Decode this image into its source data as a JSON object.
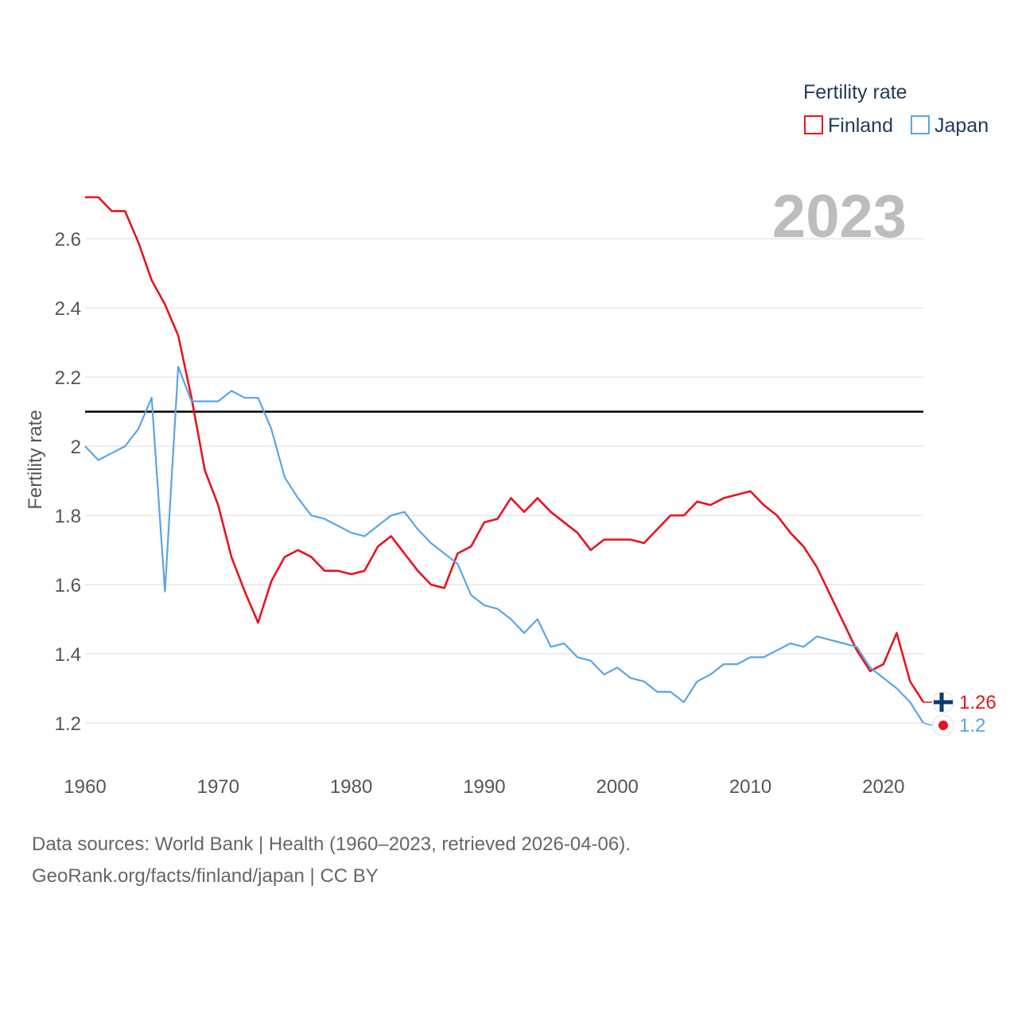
{
  "legend": {
    "title": "Fertility rate",
    "items": [
      {
        "name": "Finland",
        "color": "#e8141c"
      },
      {
        "name": "Japan",
        "color": "#5aa5e6"
      }
    ]
  },
  "year_label": "2023",
  "end_labels": {
    "finland": "1.26",
    "japan": "1.2"
  },
  "icons": {
    "finland": "finland-flag-icon",
    "japan": "japan-flag-icon"
  },
  "footer": {
    "line1": "Data sources: World Bank | Health (1960–2023, retrieved 2026-04-06).",
    "line2": "GeoRank.org/facts/finland/japan | CC BY"
  },
  "chart_data": {
    "type": "line",
    "title": "",
    "xlabel": "",
    "ylabel": "Fertility rate",
    "xlim": [
      1960,
      2023
    ],
    "ylim": [
      1.1,
      2.75
    ],
    "x_ticks": [
      1960,
      1970,
      1980,
      1990,
      2000,
      2010,
      2020
    ],
    "y_ticks": [
      1.2,
      1.4,
      1.6,
      1.8,
      2.0,
      2.2,
      2.4,
      2.6
    ],
    "y_tick_labels": [
      "1.2",
      "1.4",
      "1.6",
      "1.8",
      "2",
      "2.2",
      "2.4",
      "2.6"
    ],
    "reference_line": {
      "y": 2.1,
      "color": "#000000"
    },
    "grid": true,
    "x": [
      1960,
      1961,
      1962,
      1963,
      1964,
      1965,
      1966,
      1967,
      1968,
      1969,
      1970,
      1971,
      1972,
      1973,
      1974,
      1975,
      1976,
      1977,
      1978,
      1979,
      1980,
      1981,
      1982,
      1983,
      1984,
      1985,
      1986,
      1987,
      1988,
      1989,
      1990,
      1991,
      1992,
      1993,
      1994,
      1995,
      1996,
      1997,
      1998,
      1999,
      2000,
      2001,
      2002,
      2003,
      2004,
      2005,
      2006,
      2007,
      2008,
      2009,
      2010,
      2011,
      2012,
      2013,
      2014,
      2015,
      2016,
      2017,
      2018,
      2019,
      2020,
      2021,
      2022,
      2023
    ],
    "series": [
      {
        "name": "Finland",
        "color": "#e8141c",
        "values": [
          2.72,
          2.72,
          2.68,
          2.68,
          2.59,
          2.48,
          2.41,
          2.32,
          2.14,
          1.93,
          1.83,
          1.68,
          1.58,
          1.49,
          1.61,
          1.68,
          1.7,
          1.68,
          1.64,
          1.64,
          1.63,
          1.64,
          1.71,
          1.74,
          1.69,
          1.64,
          1.6,
          1.59,
          1.69,
          1.71,
          1.78,
          1.79,
          1.85,
          1.81,
          1.85,
          1.81,
          1.78,
          1.75,
          1.7,
          1.73,
          1.73,
          1.73,
          1.72,
          1.76,
          1.8,
          1.8,
          1.84,
          1.83,
          1.85,
          1.86,
          1.87,
          1.83,
          1.8,
          1.75,
          1.71,
          1.65,
          1.57,
          1.49,
          1.41,
          1.35,
          1.37,
          1.46,
          1.32,
          1.26
        ]
      },
      {
        "name": "Japan",
        "color": "#5aa5e6",
        "values": [
          2.0,
          1.96,
          1.98,
          2.0,
          2.05,
          2.14,
          1.58,
          2.23,
          2.13,
          2.13,
          2.13,
          2.16,
          2.14,
          2.14,
          2.05,
          1.91,
          1.85,
          1.8,
          1.79,
          1.77,
          1.75,
          1.74,
          1.77,
          1.8,
          1.81,
          1.76,
          1.72,
          1.69,
          1.66,
          1.57,
          1.54,
          1.53,
          1.5,
          1.46,
          1.5,
          1.42,
          1.43,
          1.39,
          1.38,
          1.34,
          1.36,
          1.33,
          1.32,
          1.29,
          1.29,
          1.26,
          1.32,
          1.34,
          1.37,
          1.37,
          1.39,
          1.39,
          1.41,
          1.43,
          1.42,
          1.45,
          1.44,
          1.43,
          1.42,
          1.36,
          1.33,
          1.3,
          1.26,
          1.2
        ]
      }
    ]
  }
}
